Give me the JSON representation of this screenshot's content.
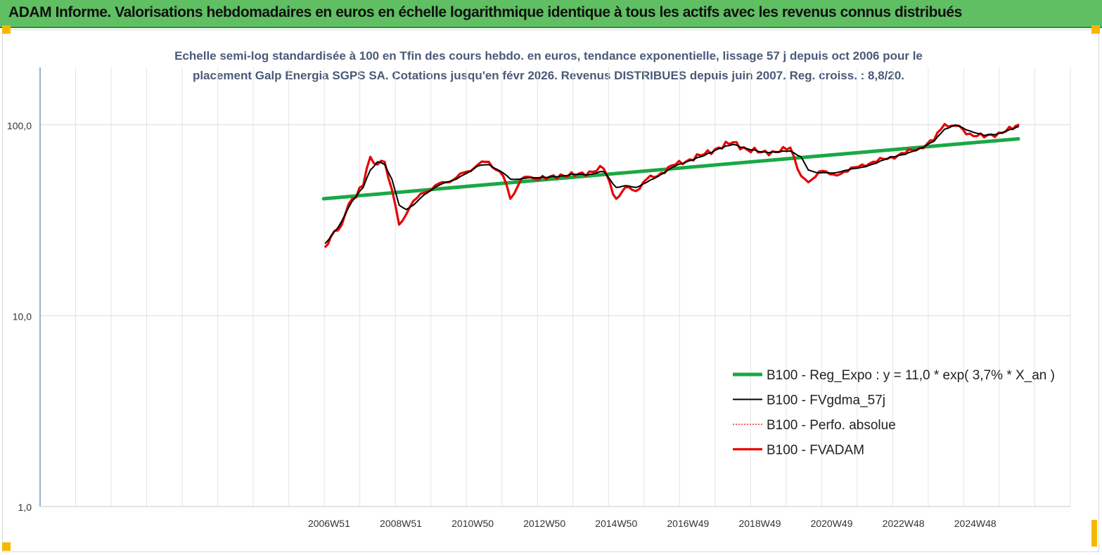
{
  "banner": {
    "title": "ADAM Informe. Valorisations hebdomadaires en euros en échelle logarithmique identique à tous les actifs avec les revenus connus distribués"
  },
  "colors": {
    "banner_bg": "#5fbf62",
    "trend": "#1aa845",
    "fvgdma": "#000000",
    "fvadam": "#e60000",
    "perfo": "#e60000",
    "corner": "#f5b800"
  },
  "chart_data": {
    "type": "line",
    "title_lines": [
      "Echelle semi-log standardisée à 100 en Tfin des cours hebdo. en euros, tendance exponentielle, lissage 57 j depuis oct 2006 pour le",
      "placement Galp Energia SGPS SA. Cotations jusqu'en févr 2026. Revenus DISTRIBUES depuis juin 2007. Reg. croiss. : 8,8/20."
    ],
    "y_scale": "log",
    "ylim": [
      1,
      200
    ],
    "y_ticks": [
      1,
      10,
      100
    ],
    "y_tick_labels": [
      "1,0",
      "10,0",
      "100,0"
    ],
    "xlim": [
      1998.9,
      2027.6
    ],
    "x_ticks": [
      2006.95,
      2008.95,
      2010.95,
      2012.95,
      2014.95,
      2016.95,
      2018.95,
      2020.95,
      2022.95,
      2024.95
    ],
    "x_tick_labels": [
      "2006W51",
      "2008W51",
      "2010W50",
      "2012W50",
      "2014W50",
      "2016W49",
      "2018W49",
      "2020W49",
      "2022W48",
      "2024W48"
    ],
    "grid": "vertical",
    "legend_position": "lower-right",
    "series": [
      {
        "name": "B100 - Reg_Expo : y = 11,0 * exp( 3,7% * X_an )",
        "style": "trend",
        "x": [
          2006.8,
          2026.15
        ],
        "y": [
          41,
          84.5
        ]
      },
      {
        "name": "B100 - FVgdma_57j",
        "style": "smooth",
        "x": [
          2006.85,
          2007.0,
          2007.2,
          2007.4,
          2007.6,
          2007.9,
          2008.1,
          2008.3,
          2008.5,
          2008.7,
          2008.9,
          2009.1,
          2009.3,
          2009.6,
          2009.9,
          2010.2,
          2010.5,
          2010.8,
          2011.1,
          2011.4,
          2011.8,
          2012.0,
          2012.3,
          2012.6,
          2013.0,
          2013.4,
          2013.8,
          2014.2,
          2014.6,
          2014.95,
          2015.2,
          2015.5,
          2015.8,
          2016.2,
          2016.6,
          2017.0,
          2017.4,
          2017.8,
          2018.2,
          2018.6,
          2019.0,
          2019.4,
          2019.8,
          2020.1,
          2020.3,
          2020.6,
          2021.0,
          2021.4,
          2021.8,
          2022.2,
          2022.6,
          2023.0,
          2023.4,
          2023.8,
          2024.1,
          2024.4,
          2024.8,
          2025.2,
          2025.6,
          2026.0,
          2026.15
        ],
        "y": [
          24,
          26,
          29,
          34,
          40,
          47,
          58,
          64,
          62,
          52,
          38,
          36,
          38,
          43,
          47,
          50,
          52,
          56,
          61,
          62,
          56,
          52,
          52,
          53,
          53,
          54,
          55,
          55,
          57,
          47,
          48,
          47,
          50,
          55,
          61,
          65,
          69,
          75,
          79,
          75,
          72,
          72,
          73,
          68,
          58,
          56,
          56,
          58,
          60,
          63,
          68,
          70,
          75,
          82,
          95,
          100,
          93,
          88,
          90,
          95,
          98
        ]
      },
      {
        "name": "B100 - Perfo. absolue",
        "style": "dotted",
        "x": [
          2006.85,
          2007.0,
          2007.2,
          2007.4,
          2007.6,
          2007.9,
          2008.1,
          2008.3,
          2008.5,
          2008.7,
          2008.9,
          2009.1,
          2009.3,
          2009.6,
          2009.9,
          2010.2,
          2010.5,
          2010.8,
          2011.1,
          2011.4,
          2011.8,
          2012.0,
          2012.3,
          2012.6,
          2013.0,
          2013.4,
          2013.8,
          2014.2,
          2014.6,
          2014.95,
          2015.2,
          2015.5,
          2015.8,
          2016.2,
          2016.6,
          2017.0,
          2017.4,
          2017.8,
          2018.2,
          2018.6,
          2019.0,
          2019.4,
          2019.8,
          2020.1,
          2020.3,
          2020.6,
          2021.0,
          2021.4,
          2021.8,
          2022.2,
          2022.6,
          2023.0,
          2023.4,
          2023.8,
          2024.1,
          2024.4,
          2024.8,
          2025.2,
          2025.6,
          2026.0,
          2026.15
        ],
        "y": [
          23,
          26,
          28,
          34,
          41,
          48,
          68,
          62,
          64,
          46,
          30,
          34,
          40,
          44,
          48,
          50,
          53,
          57,
          62,
          64,
          54,
          41,
          52,
          53,
          52,
          55,
          54,
          57,
          59,
          41,
          47,
          45,
          52,
          56,
          62,
          66,
          70,
          76,
          81,
          74,
          72,
          72,
          76,
          54,
          50,
          57,
          55,
          57,
          62,
          64,
          68,
          71,
          76,
          83,
          101,
          99,
          90,
          86,
          91,
          95,
          100
        ]
      },
      {
        "name": "B100 - FVADAM",
        "style": "thick",
        "x": [
          2006.85,
          2007.0,
          2007.2,
          2007.4,
          2007.6,
          2007.9,
          2008.1,
          2008.3,
          2008.5,
          2008.7,
          2008.9,
          2009.1,
          2009.3,
          2009.6,
          2009.9,
          2010.2,
          2010.5,
          2010.8,
          2011.1,
          2011.4,
          2011.8,
          2012.0,
          2012.3,
          2012.6,
          2013.0,
          2013.4,
          2013.8,
          2014.2,
          2014.6,
          2014.95,
          2015.2,
          2015.5,
          2015.8,
          2016.2,
          2016.6,
          2017.0,
          2017.4,
          2017.8,
          2018.2,
          2018.6,
          2019.0,
          2019.4,
          2019.8,
          2020.1,
          2020.3,
          2020.6,
          2021.0,
          2021.4,
          2021.8,
          2022.2,
          2022.6,
          2023.0,
          2023.4,
          2023.8,
          2024.1,
          2024.4,
          2024.8,
          2025.2,
          2025.6,
          2026.0,
          2026.15
        ],
        "y": [
          23,
          26,
          28,
          34,
          41,
          48,
          68,
          62,
          64,
          46,
          30,
          34,
          40,
          44,
          48,
          50,
          53,
          57,
          62,
          64,
          54,
          41,
          52,
          53,
          52,
          55,
          54,
          57,
          59,
          41,
          47,
          45,
          52,
          56,
          62,
          66,
          70,
          76,
          81,
          74,
          72,
          72,
          76,
          54,
          50,
          57,
          55,
          57,
          62,
          64,
          68,
          71,
          76,
          83,
          101,
          99,
          90,
          86,
          91,
          95,
          100
        ]
      }
    ]
  }
}
